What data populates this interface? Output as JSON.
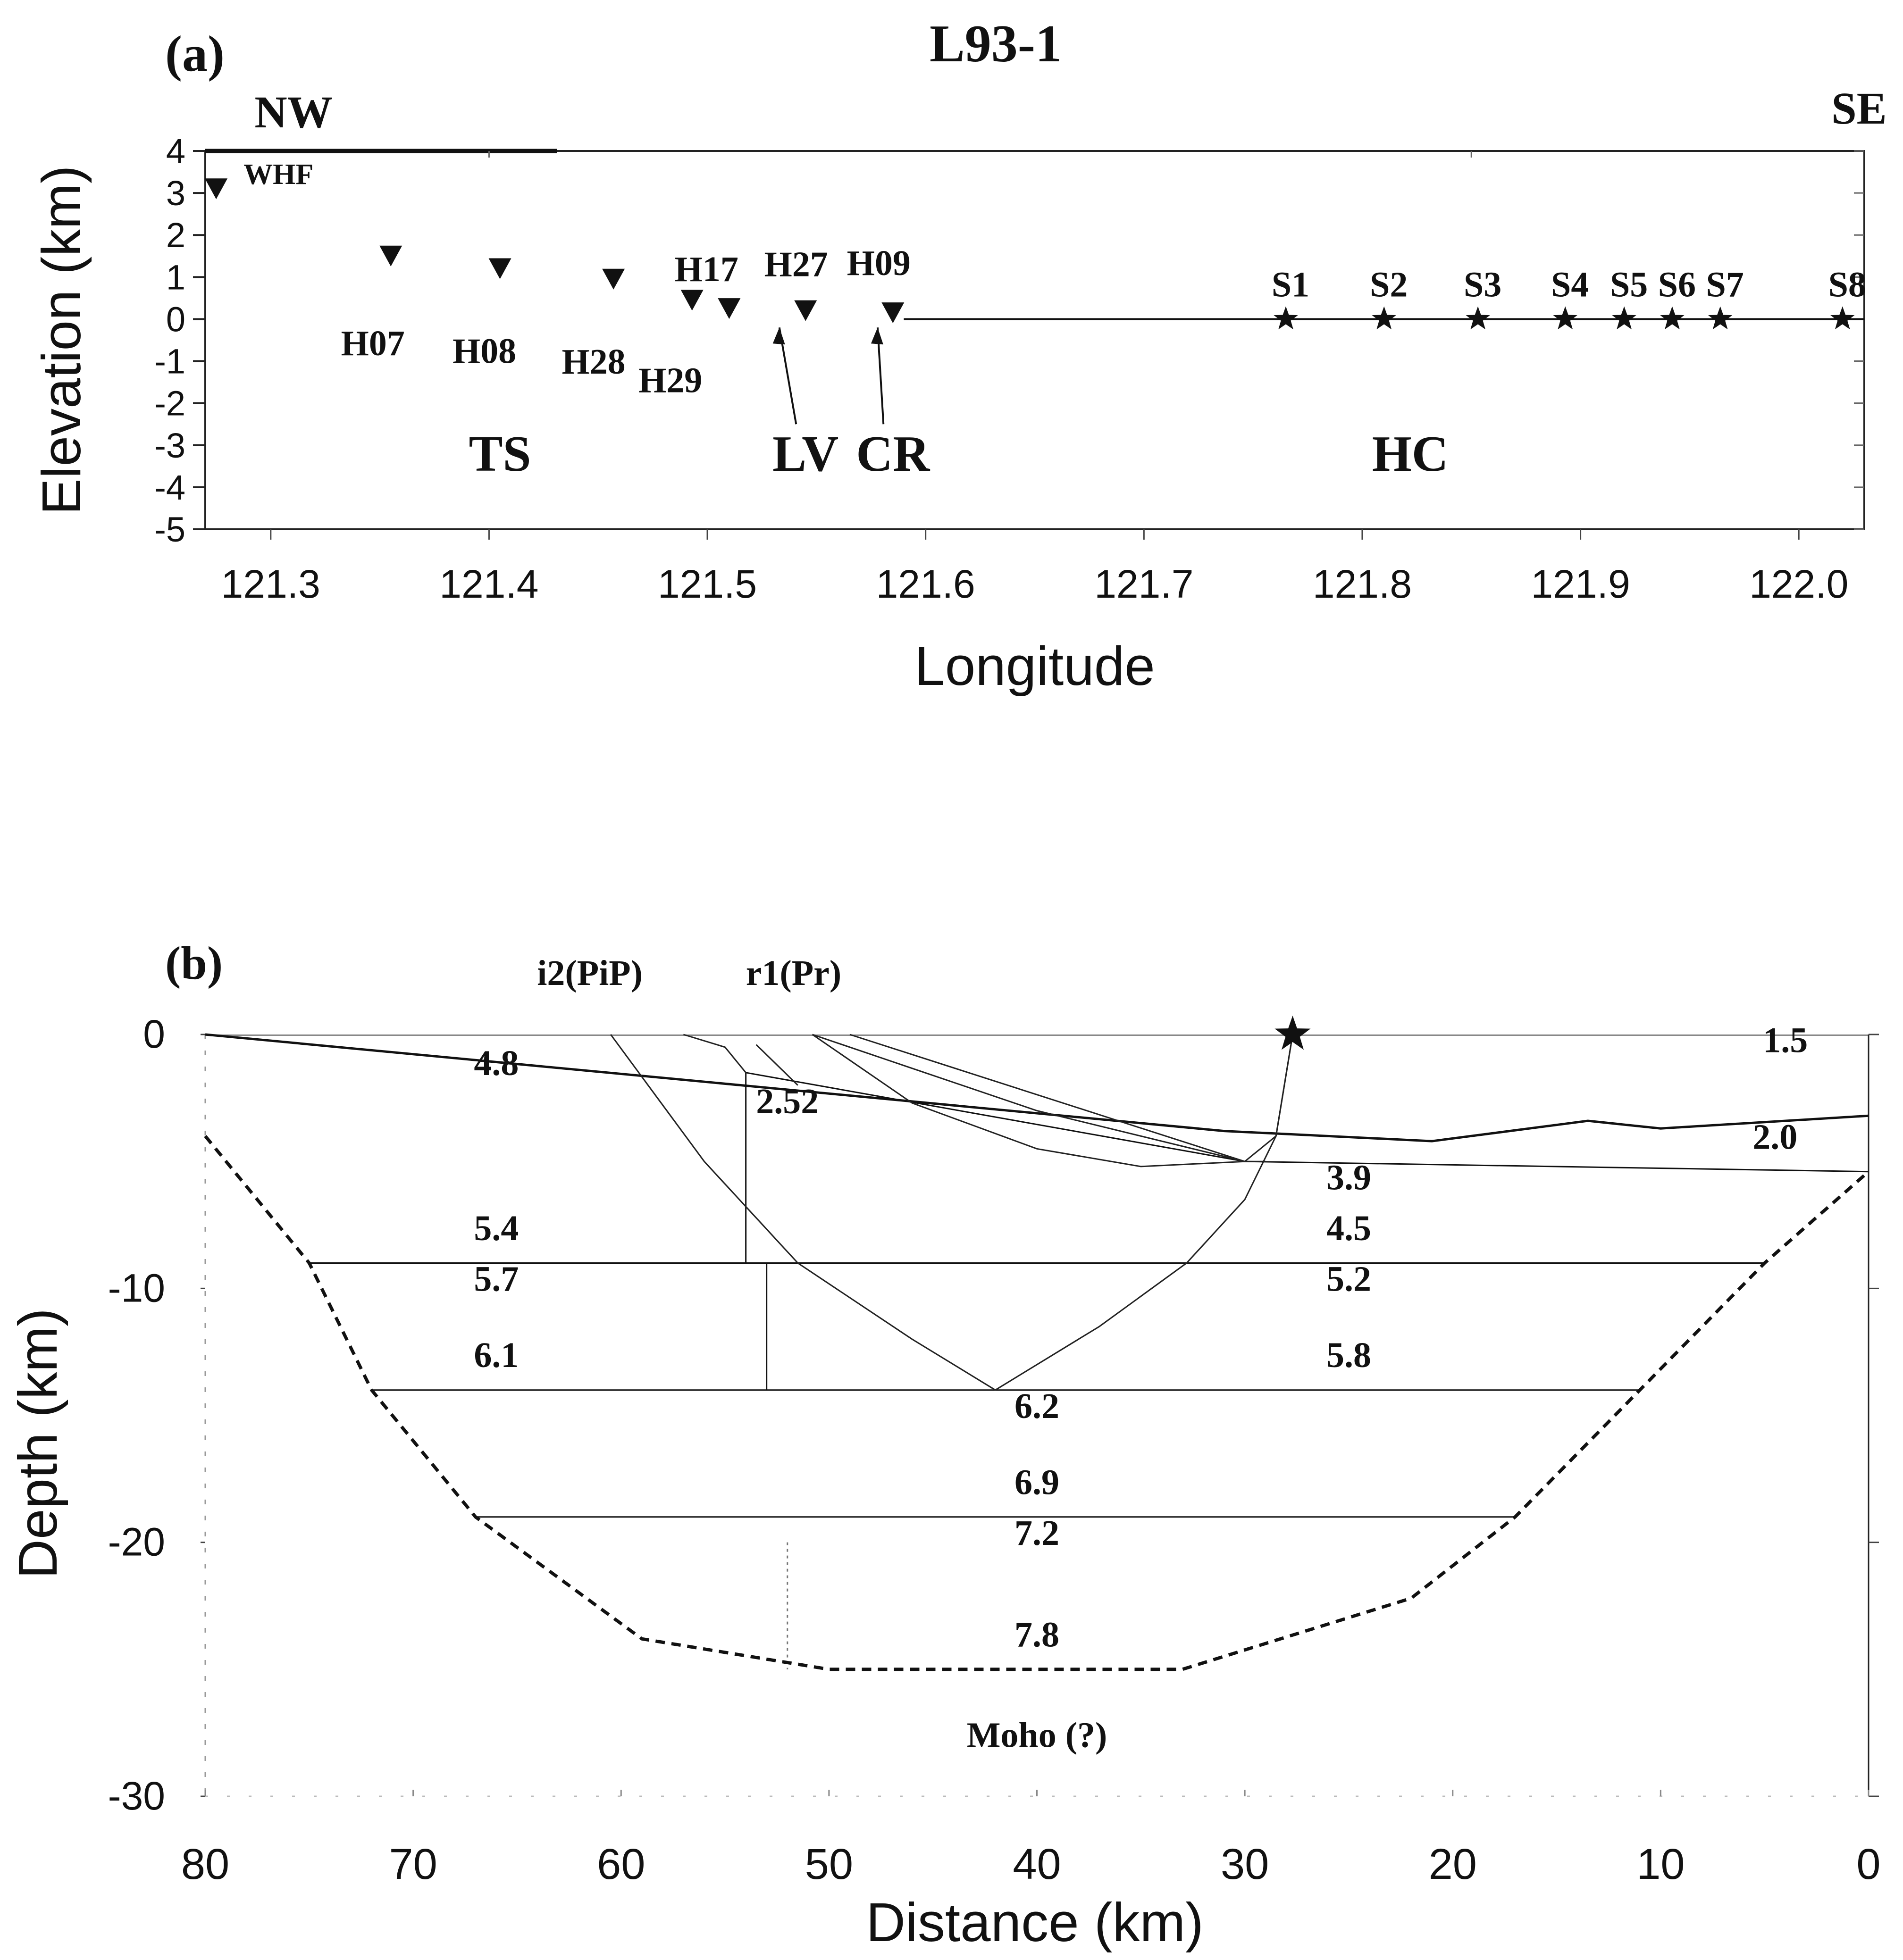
{
  "figure": {
    "title": "L93-1",
    "panel_a_tag": "(a)",
    "panel_b_tag": "(b)",
    "left_direction": "NW",
    "right_direction": "SE"
  },
  "chart_data": [
    {
      "type": "scatter",
      "panel": "(a)",
      "xlabel": "Longitude",
      "ylabel": "Elevation (km)",
      "xlim": [
        121.27,
        122.03
      ],
      "ylim": [
        -5,
        4
      ],
      "xticks": [
        "121.3",
        "121.4",
        "121.5",
        "121.6",
        "121.7",
        "121.8",
        "121.9",
        "122.0"
      ],
      "yticks": [
        "4",
        "3",
        "2",
        "1",
        "0",
        "-1",
        "-2",
        "-3",
        "-4",
        "-5"
      ],
      "seismic_stations": [
        {
          "name": "WHF",
          "lon": 121.275,
          "elev": 3.1
        },
        {
          "name": "H07",
          "lon": 121.355,
          "elev": 1.5
        },
        {
          "name": "H08",
          "lon": 121.405,
          "elev": 1.2
        },
        {
          "name": "H28",
          "lon": 121.457,
          "elev": 0.95
        },
        {
          "name": "H29",
          "lon": 121.493,
          "elev": 0.45
        },
        {
          "name": "H17",
          "lon": 121.51,
          "elev": 0.25
        },
        {
          "name": "H27",
          "lon": 121.545,
          "elev": 0.2
        },
        {
          "name": "H09",
          "lon": 121.585,
          "elev": 0.15
        }
      ],
      "shots": [
        {
          "name": "S1",
          "lon": 121.765,
          "elev": 0
        },
        {
          "name": "S2",
          "lon": 121.81,
          "elev": 0
        },
        {
          "name": "S3",
          "lon": 121.853,
          "elev": 0
        },
        {
          "name": "S4",
          "lon": 121.893,
          "elev": 0
        },
        {
          "name": "S5",
          "lon": 121.92,
          "elev": 0
        },
        {
          "name": "S6",
          "lon": 121.942,
          "elev": 0
        },
        {
          "name": "S7",
          "lon": 121.964,
          "elev": 0
        },
        {
          "name": "S8",
          "lon": 122.02,
          "elev": 0
        }
      ],
      "regions": [
        {
          "label": "TS",
          "lon": 121.405,
          "elev": -3
        },
        {
          "label": "LV",
          "lon": 121.545,
          "elev": -3
        },
        {
          "label": "CR",
          "lon": 121.585,
          "elev": -3
        },
        {
          "label": "HC",
          "lon": 121.822,
          "elev": -3
        }
      ]
    },
    {
      "type": "line",
      "panel": "(b)",
      "xlabel": "Distance (km)",
      "ylabel": "Depth (km)",
      "xlim": [
        80,
        0
      ],
      "ylim": [
        -30,
        0
      ],
      "xticks": [
        "80",
        "70",
        "60",
        "50",
        "40",
        "30",
        "20",
        "10",
        "0"
      ],
      "yticks": [
        "0",
        "-10",
        "-20",
        "-30"
      ],
      "ray_labels": [
        "i2(PiP)",
        "r1(Pr)"
      ],
      "source_star": {
        "x": 27.7,
        "y": 0
      },
      "moho_label": "Moho (?)",
      "interfaces": [
        {
          "points": [
            [
              80,
              0
            ],
            [
              31,
              -3.8
            ],
            [
              21,
              -4.2
            ],
            [
              13.5,
              -3.4
            ],
            [
              10,
              -3.7
            ],
            [
              0,
              -3.2
            ]
          ]
        },
        {
          "points": [
            [
              54,
              -1.5
            ],
            [
              30,
              -5.0
            ],
            [
              0,
              -5.4
            ]
          ]
        },
        {
          "points": [
            [
              75,
              -9.0
            ],
            [
              5,
              -9.0
            ]
          ]
        },
        {
          "points": [
            [
              72,
              -14.0
            ],
            [
              11,
              -14.0
            ]
          ]
        },
        {
          "points": [
            [
              67,
              -19.0
            ],
            [
              17,
              -19.0
            ]
          ]
        }
      ],
      "velocities": [
        {
          "value": "4.8",
          "x": 66,
          "y": -1.6
        },
        {
          "value": "2.52",
          "x": 52,
          "y": -3.1
        },
        {
          "value": "1.5",
          "x": 4,
          "y": -0.7
        },
        {
          "value": "2.0",
          "x": 4.5,
          "y": -4.5
        },
        {
          "value": "3.9",
          "x": 25,
          "y": -6.1
        },
        {
          "value": "5.4",
          "x": 66,
          "y": -8.1
        },
        {
          "value": "4.5",
          "x": 25,
          "y": -8.1
        },
        {
          "value": "5.7",
          "x": 66,
          "y": -10.1
        },
        {
          "value": "5.2",
          "x": 25,
          "y": -10.1
        },
        {
          "value": "6.1",
          "x": 66,
          "y": -13.1
        },
        {
          "value": "5.8",
          "x": 25,
          "y": -13.1
        },
        {
          "value": "6.2",
          "x": 40,
          "y": -15.1
        },
        {
          "value": "6.9",
          "x": 40,
          "y": -18.1
        },
        {
          "value": "7.2",
          "x": 40,
          "y": -20.1
        },
        {
          "value": "7.8",
          "x": 40,
          "y": -24.1
        }
      ]
    }
  ]
}
